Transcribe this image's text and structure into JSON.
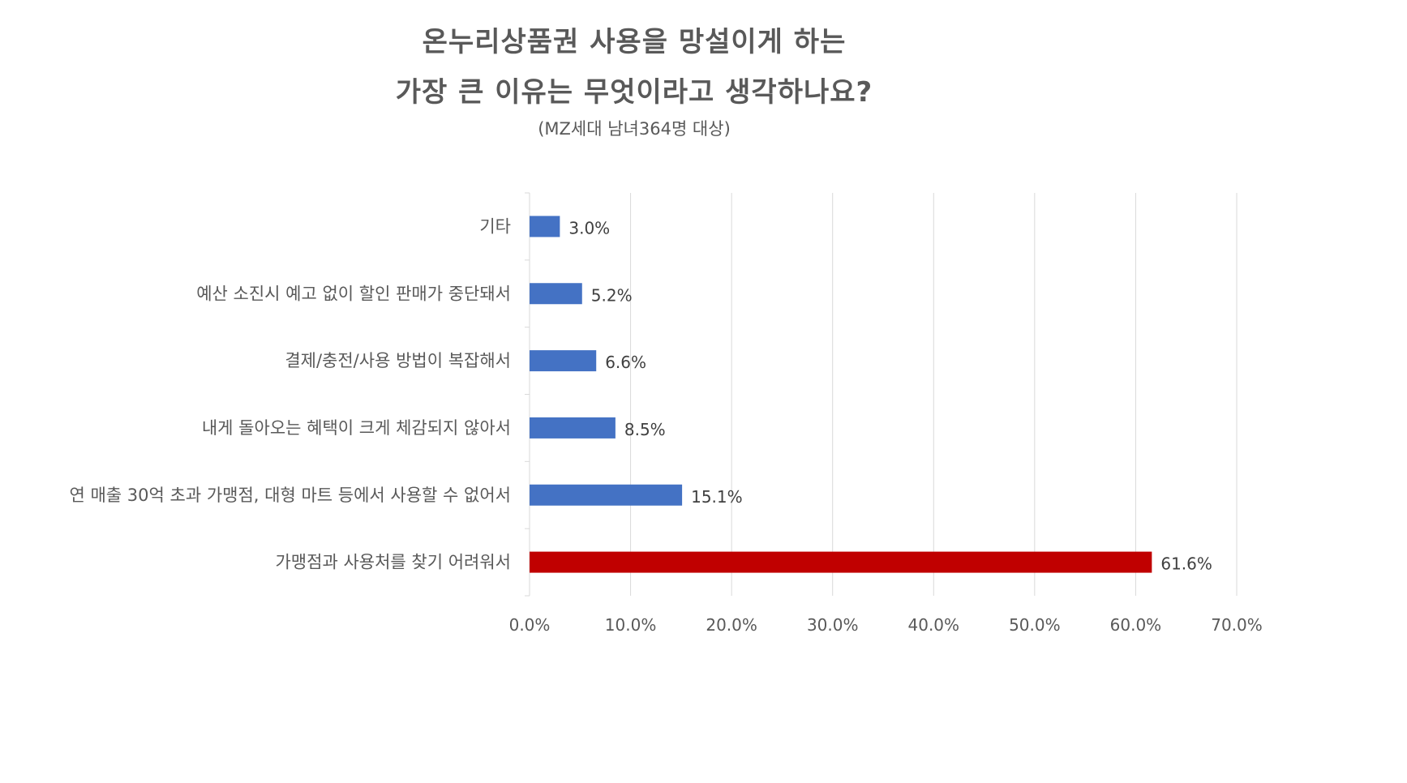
{
  "chart_data": {
    "type": "bar",
    "orientation": "horizontal",
    "title_lines": [
      "온누리상품권 사용을 망설이게 하는",
      "가장 큰 이유는 무엇이라고 생각하나요?"
    ],
    "subtitle": "(MZ세대 남녀364명 대상)",
    "categories": [
      "기타",
      "예산 소진시 예고 없이 할인 판매가 중단돼서",
      "결제/충전/사용 방법이 복잡해서",
      "내게 돌아오는 혜택이 크게 체감되지 않아서",
      "연 매출 30억 초과 가맹점, 대형 마트 등에서 사용할 수 없어서",
      "가맹점과 사용처를 찾기 어려워서"
    ],
    "values": [
      3.0,
      5.2,
      6.6,
      8.5,
      15.1,
      61.6
    ],
    "data_labels": [
      "3.0%",
      "5.2%",
      "6.6%",
      "8.5%",
      "15.1%",
      "61.6%"
    ],
    "bar_colors": [
      "#4472C4",
      "#4472C4",
      "#4472C4",
      "#4472C4",
      "#4472C4",
      "#C00000"
    ],
    "xlim": [
      0,
      70
    ],
    "x_ticks": [
      0,
      10,
      20,
      30,
      40,
      50,
      60,
      70
    ],
    "x_tick_labels": [
      "0.0%",
      "10.0%",
      "20.0%",
      "30.0%",
      "40.0%",
      "50.0%",
      "60.0%",
      "70.0%"
    ],
    "grid": true,
    "legend": "none"
  }
}
